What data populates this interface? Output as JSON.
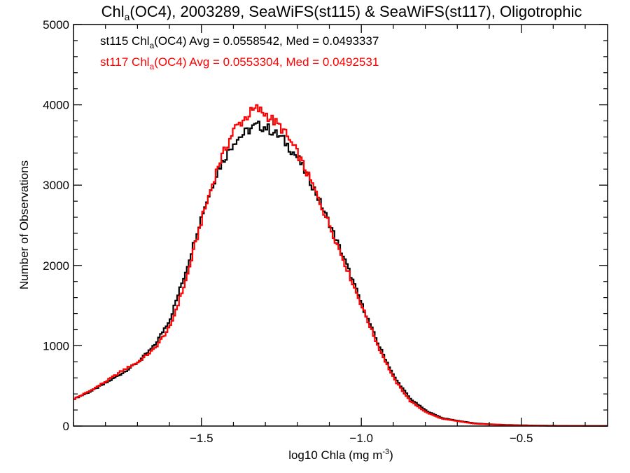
{
  "chart_data": {
    "type": "line",
    "title": {
      "part1": "Chl",
      "sub": "a",
      "part2": "(OC4), 2003289, SeaWiFS(st115) & SeaWiFS(st117), Oligotrophic"
    },
    "xlabel": {
      "main": "log10 Chla (mg m",
      "sup": "-3",
      "close": ")"
    },
    "ylabel": "Number of Observations",
    "xlim": [
      -1.9,
      -0.23
    ],
    "ylim": [
      0,
      5000
    ],
    "x_ticks": [
      {
        "value": -1.5,
        "label": "−1.5"
      },
      {
        "value": -1.0,
        "label": "−1.0"
      },
      {
        "value": -0.5,
        "label": "−0.5"
      }
    ],
    "y_ticks": [
      {
        "value": 0,
        "label": "0"
      },
      {
        "value": 1000,
        "label": "1000"
      },
      {
        "value": 2000,
        "label": "2000"
      },
      {
        "value": 3000,
        "label": "3000"
      },
      {
        "value": 4000,
        "label": "4000"
      },
      {
        "value": 5000,
        "label": "5000"
      }
    ],
    "x_minor_step": 0.1,
    "y_minor_step": 200,
    "grid": false,
    "legend_position": "top-left",
    "series": [
      {
        "name": "st115",
        "color": "#000000",
        "legend": {
          "pre": "st115 Chl",
          "sub": "a",
          "post": "(OC4) Avg = 0.0558542, Med = 0.0493337"
        },
        "x": [
          -1.9,
          -1.85,
          -1.8,
          -1.75,
          -1.7,
          -1.65,
          -1.6,
          -1.55,
          -1.5,
          -1.45,
          -1.4,
          -1.35,
          -1.33,
          -1.3,
          -1.25,
          -1.2,
          -1.15,
          -1.1,
          -1.05,
          -1.0,
          -0.95,
          -0.9,
          -0.85,
          -0.8,
          -0.75,
          -0.7,
          -0.65,
          -0.6,
          -0.55,
          -0.5,
          -0.45,
          -0.4,
          -0.3,
          -0.23
        ],
        "y": [
          340,
          430,
          540,
          660,
          800,
          1000,
          1340,
          1950,
          2650,
          3200,
          3550,
          3700,
          3740,
          3720,
          3580,
          3330,
          2950,
          2500,
          2020,
          1500,
          1020,
          610,
          340,
          190,
          100,
          65,
          35,
          22,
          15,
          10,
          6,
          4,
          2,
          1
        ]
      },
      {
        "name": "st117",
        "color": "#ff0000",
        "legend": {
          "pre": "st117 Chl",
          "sub": "a",
          "post": "(OC4) Avg = 0.0553304, Med = 0.0492531"
        },
        "x": [
          -1.9,
          -1.85,
          -1.8,
          -1.75,
          -1.7,
          -1.65,
          -1.6,
          -1.55,
          -1.5,
          -1.45,
          -1.4,
          -1.35,
          -1.33,
          -1.3,
          -1.25,
          -1.2,
          -1.15,
          -1.1,
          -1.05,
          -1.0,
          -0.95,
          -0.9,
          -0.85,
          -0.8,
          -0.75,
          -0.7,
          -0.65,
          -0.6,
          -0.55,
          -0.5,
          -0.45,
          -0.4,
          -0.3,
          -0.23
        ],
        "y": [
          340,
          440,
          560,
          690,
          800,
          960,
          1240,
          1830,
          2600,
          3250,
          3700,
          3900,
          3950,
          3880,
          3700,
          3380,
          2950,
          2480,
          1980,
          1480,
          990,
          580,
          310,
          170,
          90,
          60,
          30,
          20,
          12,
          8,
          5,
          3,
          2,
          1
        ]
      }
    ]
  }
}
